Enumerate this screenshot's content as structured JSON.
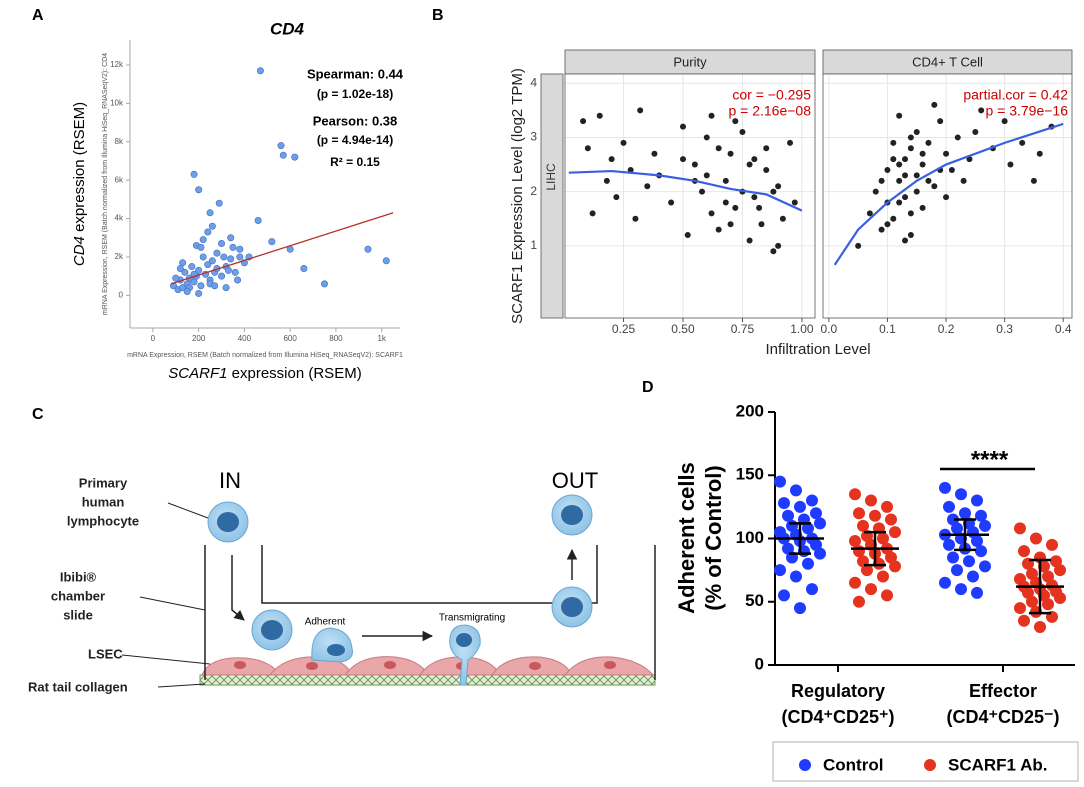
{
  "chart_data": [
    {
      "panel": "A",
      "type": "scatter",
      "title": "CD4",
      "xlabel_small": "mRNA Expression, RSEM (Batch normalized from Illumina HiSeq_RNASeqV2): SCARF1",
      "ylabel_small": "mRNA Expression, RSEM (Batch normalized from Illumina HiSeq_RNASeqV2): CD4",
      "xlabel": [
        "SCARF1",
        " expression (RSEM)"
      ],
      "ylabel": [
        "CD4",
        " expression (RSEM)"
      ],
      "annotations": [
        "Spearman: 0.44",
        "(p = 1.02e-18)",
        "Pearson: 0.38",
        "(p = 4.94e-14)",
        "R² = 0.15"
      ],
      "color": "#6f9ee8",
      "xlim": [
        -100,
        1080
      ],
      "ylim": [
        -1700,
        13300
      ],
      "xticks": [
        0,
        200,
        400,
        600,
        800,
        {
          "value": 1000,
          "label": "1k"
        }
      ],
      "yticks": [
        0,
        {
          "value": 2000,
          "label": "2k"
        },
        {
          "value": 4000,
          "label": "4k"
        },
        {
          "value": 6000,
          "label": "6k"
        },
        {
          "value": 8000,
          "label": "8k"
        },
        {
          "value": 10000,
          "label": "10k"
        },
        {
          "value": 12000,
          "label": "12k"
        }
      ],
      "x": [
        90,
        110,
        120,
        130,
        140,
        150,
        160,
        170,
        180,
        190,
        200,
        210,
        220,
        230,
        240,
        250,
        260,
        270,
        280,
        300,
        320,
        340,
        360,
        380,
        400,
        100,
        130,
        160,
        190,
        220,
        250,
        280,
        310,
        340,
        370,
        150,
        180,
        210,
        240,
        270,
        300,
        330,
        120,
        200,
        260,
        320,
        380,
        470,
        560,
        570,
        620,
        940,
        1020,
        200,
        180,
        250,
        290,
        460,
        600,
        660,
        750,
        520,
        420,
        350
      ],
      "y": [
        500,
        300,
        800,
        400,
        1200,
        600,
        900,
        1500,
        700,
        1000,
        1300,
        500,
        2000,
        1100,
        1600,
        800,
        1800,
        1200,
        2200,
        1000,
        1500,
        1900,
        1200,
        2400,
        1700,
        900,
        1700,
        400,
        2600,
        2900,
        600,
        1400,
        2000,
        3000,
        800,
        200,
        1100,
        2500,
        3300,
        500,
        2700,
        1300,
        1400,
        100,
        3600,
        400,
        2000,
        11700,
        7800,
        7300,
        7200,
        2400,
        1800,
        5500,
        6300,
        4300,
        4800,
        3900,
        2400,
        1400,
        600,
        2800,
        2000,
        2500
      ],
      "fit": {
        "color": "#b5322a",
        "x": [
          80,
          1050
        ],
        "y": [
          600,
          4300
        ]
      }
    },
    {
      "panel": "B",
      "type": "scatter",
      "ylabel": "SCARF1 Expression Level (log2 TPM)",
      "xlabel": "Infiltration Level",
      "row_strip": "LIHC",
      "color": "#222222",
      "smooth_color": "#3b5fe0",
      "annotation_color": "#cc0000",
      "ylim": [
        -0.33,
        4.17
      ],
      "yticks": [
        1,
        2,
        3,
        4
      ],
      "grid": true,
      "facets": [
        {
          "title": "Purity",
          "annotations": [
            "cor = −0.295",
            "p = 2.16e−08"
          ],
          "xlim": [
            0.004,
            1.055
          ],
          "xticks": [
            0.25,
            {
              "value": 0.5,
              "label": "0.50"
            },
            0.75,
            {
              "value": 1,
              "label": "1.00"
            }
          ],
          "x": [
            0.08,
            0.1,
            0.12,
            0.15,
            0.18,
            0.2,
            0.22,
            0.25,
            0.28,
            0.3,
            0.32,
            0.35,
            0.38,
            0.4,
            0.45,
            0.5,
            0.52,
            0.55,
            0.58,
            0.6,
            0.62,
            0.65,
            0.68,
            0.7,
            0.72,
            0.75,
            0.78,
            0.8,
            0.82,
            0.85,
            0.88,
            0.9,
            0.92,
            0.95,
            0.97,
            0.6,
            0.65,
            0.7,
            0.75,
            0.8,
            0.85,
            0.9,
            0.55,
            0.5,
            0.72,
            0.78,
            0.83,
            0.88,
            0.62,
            0.68
          ],
          "y": [
            3.3,
            2.8,
            1.6,
            3.4,
            2.2,
            2.6,
            1.9,
            2.9,
            2.4,
            1.5,
            3.5,
            2.1,
            2.7,
            2.3,
            1.8,
            3.2,
            1.2,
            2.5,
            2.0,
            3.0,
            1.6,
            2.8,
            2.2,
            1.4,
            3.3,
            2.0,
            1.1,
            2.6,
            1.7,
            2.4,
            0.9,
            2.1,
            1.5,
            2.9,
            1.8,
            2.3,
            1.3,
            2.7,
            3.1,
            1.9,
            2.8,
            1.0,
            2.2,
            2.6,
            1.7,
            2.5,
            1.4,
            2.0,
            3.4,
            1.8
          ],
          "smooth": {
            "x": [
              0.02,
              0.2,
              0.4,
              0.55,
              0.7,
              0.85,
              1.0
            ],
            "y": [
              2.35,
              2.38,
              2.3,
              2.2,
              2.05,
              1.95,
              1.65
            ]
          }
        },
        {
          "title": "CD4+ T Cell",
          "annotations": [
            "partial.cor = 0.42",
            "p = 3.79e−16"
          ],
          "xlim": [
            -0.01,
            0.415
          ],
          "xticks": [
            {
              "value": 0,
              "label": "0.0"
            },
            0.1,
            0.2,
            0.3,
            0.4
          ],
          "x": [
            0.05,
            0.07,
            0.08,
            0.09,
            0.1,
            0.1,
            0.11,
            0.11,
            0.12,
            0.12,
            0.13,
            0.13,
            0.14,
            0.14,
            0.15,
            0.15,
            0.16,
            0.16,
            0.17,
            0.18,
            0.19,
            0.2,
            0.21,
            0.22,
            0.24,
            0.26,
            0.28,
            0.3,
            0.33,
            0.36,
            0.38,
            0.09,
            0.1,
            0.12,
            0.13,
            0.14,
            0.15,
            0.17,
            0.18,
            0.2,
            0.11,
            0.12,
            0.13,
            0.14,
            0.16,
            0.19,
            0.23,
            0.25,
            0.31,
            0.35
          ],
          "y": [
            1.0,
            1.6,
            2.0,
            1.3,
            2.4,
            1.8,
            2.9,
            1.5,
            2.2,
            3.4,
            1.9,
            2.6,
            1.2,
            2.8,
            2.3,
            3.1,
            1.7,
            2.5,
            2.9,
            2.1,
            3.3,
            2.7,
            2.4,
            3.0,
            2.6,
            3.5,
            2.8,
            3.3,
            2.9,
            2.7,
            3.2,
            2.2,
            1.4,
            2.5,
            1.1,
            3.0,
            2.0,
            2.2,
            3.6,
            1.9,
            2.6,
            1.8,
            2.3,
            1.6,
            2.7,
            2.4,
            2.2,
            3.1,
            2.5,
            2.2
          ],
          "smooth": {
            "x": [
              0.01,
              0.05,
              0.1,
              0.15,
              0.2,
              0.3,
              0.4
            ],
            "y": [
              0.65,
              1.3,
              1.8,
              2.2,
              2.5,
              2.9,
              3.25
            ]
          }
        }
      ]
    },
    {
      "panel": "D",
      "type": "dot",
      "ylabel": [
        "Adherent cells",
        "(% of Control)"
      ],
      "ylim": [
        0,
        200
      ],
      "yticks": [
        0,
        50,
        100,
        150,
        200
      ],
      "categories": [
        [
          "Regulatory",
          "(CD4⁺CD25⁺)"
        ],
        [
          "Effector",
          "(CD4⁺CD25⁻)"
        ]
      ],
      "significance": {
        "label": "****",
        "category": 1
      },
      "series": [
        {
          "name": "Control",
          "color": "#1f3bff",
          "mean": [
            100,
            103
          ],
          "sd": [
            12,
            12
          ],
          "points": [
            [
              145,
              138,
              130,
              128,
              125,
              120,
              118,
              115,
              112,
              110,
              108,
              105,
              103,
              100,
              100,
              98,
              95,
              92,
              90,
              88,
              85,
              80,
              75,
              70,
              60,
              55,
              45
            ],
            [
              140,
              135,
              130,
              125,
              120,
              118,
              115,
              112,
              110,
              108,
              105,
              103,
              100,
              98,
              95,
              92,
              90,
              85,
              82,
              78,
              75,
              70,
              65,
              60,
              57
            ]
          ]
        },
        {
          "name": "SCARF1 Ab.",
          "color": "#e5331f",
          "mean": [
            92,
            62
          ],
          "sd": [
            13,
            21
          ],
          "points": [
            [
              135,
              130,
              125,
              120,
              118,
              115,
              110,
              108,
              105,
              102,
              100,
              98,
              95,
              92,
              90,
              88,
              85,
              82,
              80,
              78,
              75,
              70,
              65,
              60,
              55,
              50
            ],
            [
              108,
              100,
              95,
              90,
              85,
              82,
              80,
              78,
              75,
              72,
              70,
              68,
              65,
              63,
              62,
              60,
              58,
              57,
              55,
              53,
              50,
              48,
              45,
              42,
              38,
              35,
              30
            ]
          ]
        }
      ]
    }
  ],
  "diagram": {
    "panel": "C",
    "in": "IN",
    "out": "OUT",
    "lymphocyte": [
      "Primary",
      "human",
      "lymphocyte"
    ],
    "chamber": [
      "Ibibi®",
      "chamber",
      "slide"
    ],
    "adherent": "Adherent",
    "transmigrating": "Transmigrating",
    "lsec": "LSEC",
    "collagen": "Rat tail collagen"
  }
}
